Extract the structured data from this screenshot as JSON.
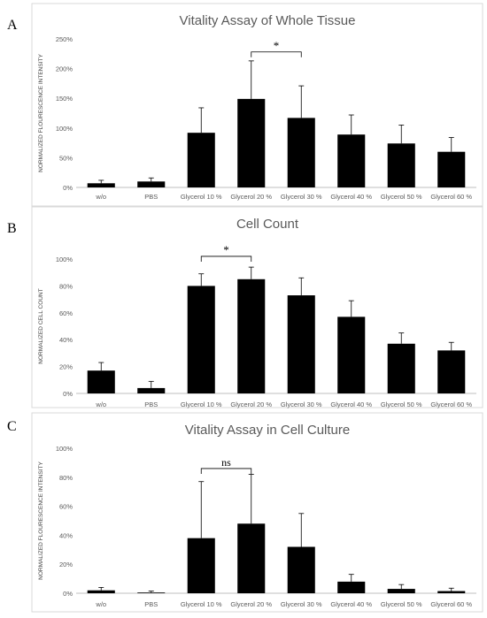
{
  "panels": [
    "A",
    "B",
    "C"
  ],
  "chart_data": [
    {
      "type": "bar",
      "panel": "A",
      "title": "Vitality Assay of Whole Tissue",
      "ylabel": "NORMALIZED FLOURESCENCE INTENSITY",
      "xlabel": "",
      "categories": [
        "w/o",
        "PBS",
        "Glycerol  10 %",
        "Glycerol  20 %",
        "Glycerol  30 %",
        "Glycerol  40 %",
        "Glycerol  50 %",
        "Glycerol  60 %"
      ],
      "values": [
        7,
        10,
        92,
        149,
        117,
        89,
        74,
        60
      ],
      "errors": [
        5,
        6,
        42,
        64,
        54,
        33,
        31,
        24
      ],
      "ylim": [
        0,
        250
      ],
      "yticks": [
        "0%",
        "50%",
        "100%",
        "150%",
        "200%",
        "250%"
      ],
      "ytick_values": [
        0,
        50,
        100,
        150,
        200,
        250
      ],
      "bar_color": "#000000",
      "significance": [
        {
          "from": 3,
          "to": 4,
          "label": "*",
          "y": 228
        }
      ]
    },
    {
      "type": "bar",
      "panel": "B",
      "title": "Cell Count",
      "ylabel": "NORMALIZED CELL COUNT",
      "xlabel": "",
      "categories": [
        "w/o",
        "PBS",
        "Glycerol  10 %",
        "Glycerol  20 %",
        "Glycerol  30 %",
        "Glycerol  40 %",
        "Glycerol  50 %",
        "Glycerol  60 %"
      ],
      "values": [
        17,
        4,
        80,
        85,
        73,
        57,
        37,
        32
      ],
      "errors": [
        6,
        5,
        9,
        9,
        13,
        12,
        8,
        6
      ],
      "ylim": [
        0,
        100
      ],
      "yticks": [
        "0%",
        "20%",
        "40%",
        "60%",
        "80%",
        "100%"
      ],
      "ytick_values": [
        0,
        20,
        40,
        60,
        80,
        100
      ],
      "bar_color": "#000000",
      "significance": [
        {
          "from": 2,
          "to": 3,
          "label": "*",
          "y": 102
        }
      ]
    },
    {
      "type": "bar",
      "panel": "C",
      "title": "Vitality Assay in Cell Culture",
      "ylabel": "NORMALIZED FLOURESCENCE INTENSITY",
      "xlabel": "",
      "categories": [
        "w/o",
        "PBS",
        "Glycerol  10 %",
        "Glycerol  20 %",
        "Glycerol  30 %",
        "Glycerol  40 %",
        "Glycerol  50 %",
        "Glycerol  60 %"
      ],
      "values": [
        2,
        0.5,
        38,
        48,
        32,
        8,
        3,
        1.5
      ],
      "errors": [
        2,
        1,
        39,
        34,
        23,
        5,
        3,
        2
      ],
      "ylim": [
        0,
        100
      ],
      "yticks": [
        "0%",
        "20%",
        "40%",
        "60%",
        "80%",
        "100%"
      ],
      "ytick_values": [
        0,
        20,
        40,
        60,
        80,
        100
      ],
      "bar_color": "#000000",
      "significance": [
        {
          "from": 2,
          "to": 3,
          "label": "ns",
          "y": 86
        }
      ]
    }
  ]
}
